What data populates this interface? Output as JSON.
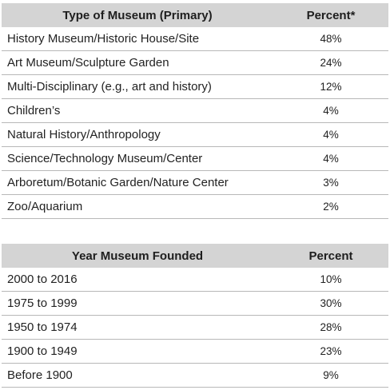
{
  "type_table": {
    "header": {
      "col1": "Type of Museum (Primary)",
      "col2": "Percent*"
    },
    "rows": [
      {
        "label": "History Museum/Historic House/Site",
        "value": "48%"
      },
      {
        "label": "Art Museum/Sculpture Garden",
        "value": "24%"
      },
      {
        "label": "Multi-Disciplinary (e.g., art and history)",
        "value": "12%"
      },
      {
        "label": "Children’s",
        "value": "4%"
      },
      {
        "label": "Natural History/Anthropology",
        "value": "4%"
      },
      {
        "label": "Science/Technology Museum/Center",
        "value": "4%"
      },
      {
        "label": "Arboretum/Botanic Garden/Nature Center",
        "value": "3%"
      },
      {
        "label": "Zoo/Aquarium",
        "value": "2%"
      }
    ]
  },
  "year_table": {
    "header": {
      "col1": "Year Museum Founded",
      "col2": "Percent"
    },
    "rows": [
      {
        "label": "2000 to 2016",
        "value": "10%"
      },
      {
        "label": "1975 to 1999",
        "value": "30%"
      },
      {
        "label": "1950 to 1974",
        "value": "28%"
      },
      {
        "label": "1900 to 1949",
        "value": "23%"
      },
      {
        "label": "Before 1900",
        "value": "9%"
      }
    ]
  },
  "colors": {
    "header_bg": "#d4d4d4",
    "row_divider": "#b8b8b8",
    "text": "#222222"
  }
}
